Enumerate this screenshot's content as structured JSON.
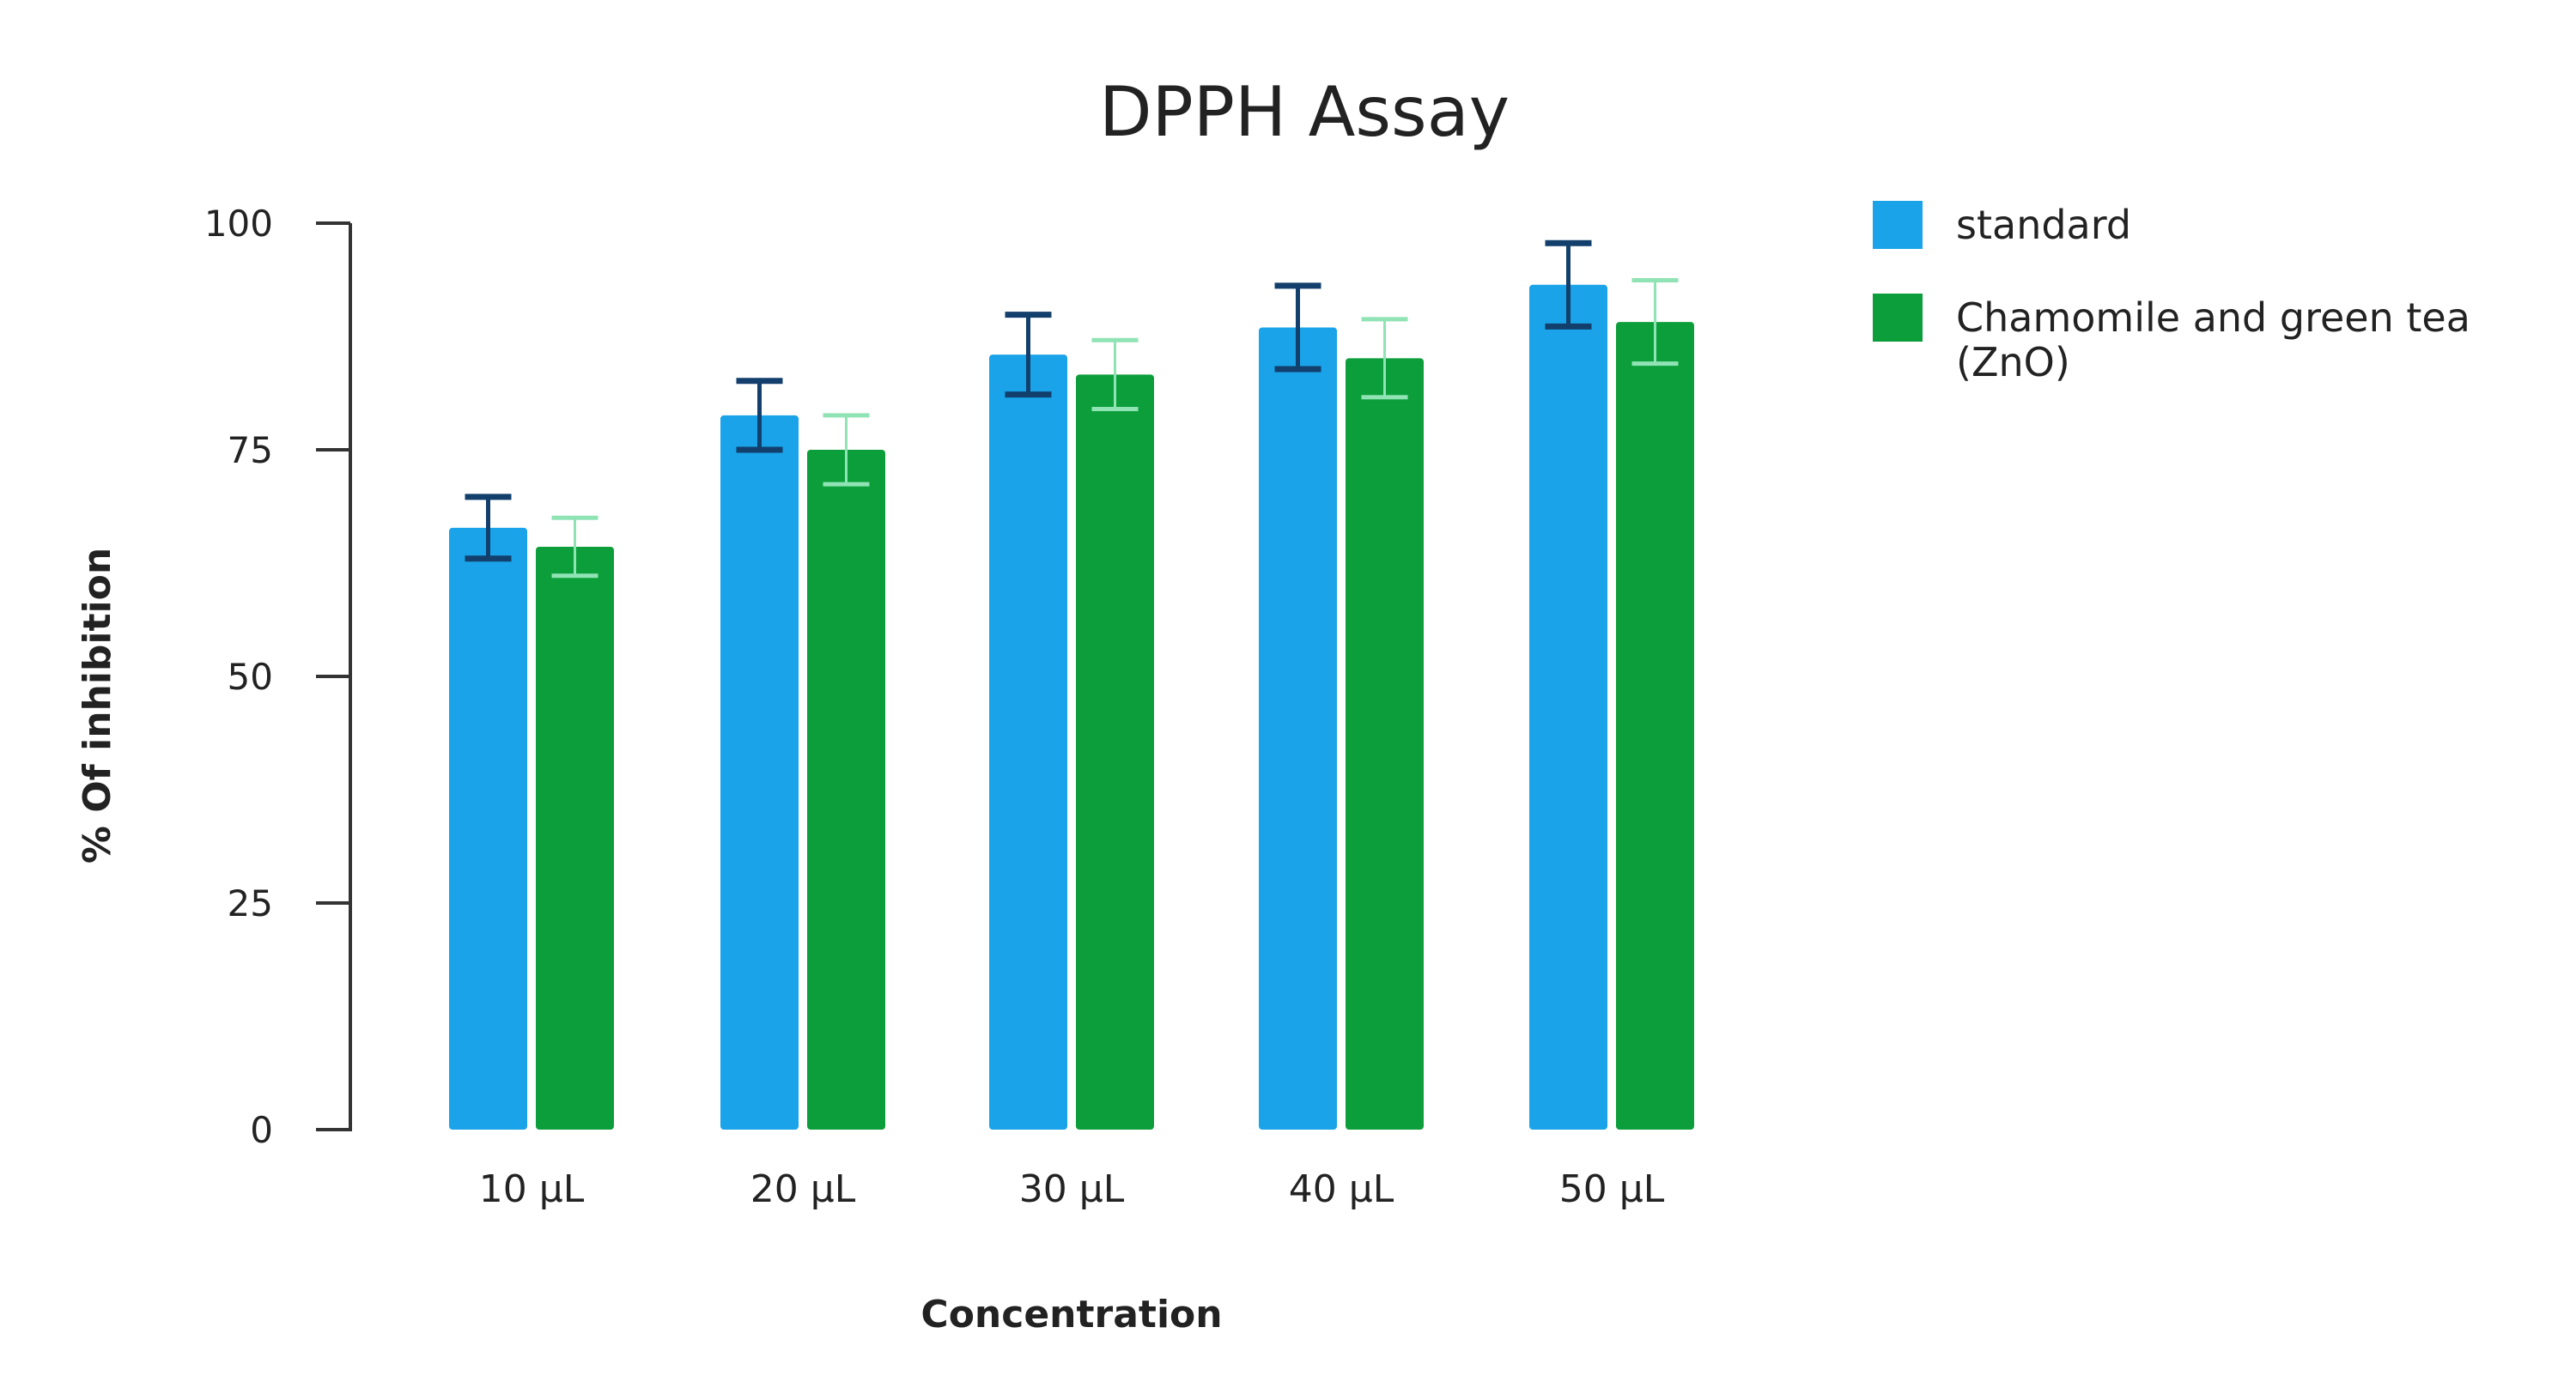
{
  "chart_data": {
    "type": "bar",
    "title": "DPPH Assay",
    "xlabel": "Concentration",
    "ylabel": "% Of inhibition",
    "ylim": [
      0,
      100
    ],
    "yticks": [
      0,
      25,
      50,
      75,
      100
    ],
    "grid": false,
    "legend_position": "top-right",
    "categories": [
      "10 µL",
      "20 µL",
      "30 µL",
      "40 µL",
      "50 µL"
    ],
    "series": [
      {
        "name": "standard",
        "color": "#1aa3e8",
        "error_color": "#123f6b",
        "values": [
          66.4,
          78.8,
          85.5,
          88.5,
          93.2
        ],
        "errors": [
          3.4,
          3.8,
          4.4,
          4.6,
          4.6
        ]
      },
      {
        "name": "Chamomile and green tea (ZnO)",
        "legend_lines": [
          "Chamomile and green tea",
          "(ZnO)"
        ],
        "color": "#0c9e3a",
        "error_color": "#8fe3b4",
        "values": [
          64.3,
          75.0,
          83.3,
          85.1,
          89.1
        ],
        "errors": [
          3.2,
          3.8,
          3.8,
          4.3,
          4.6
        ]
      }
    ]
  }
}
